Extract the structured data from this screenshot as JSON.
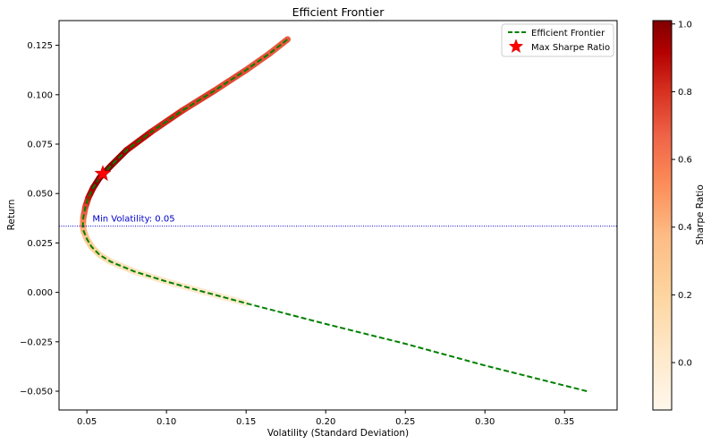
{
  "chart_data": {
    "type": "scatter",
    "title": "Efficient Frontier",
    "xlabel": "Volatility (Standard Deviation)",
    "ylabel": "Return",
    "xlim": [
      0.0325,
      0.383
    ],
    "ylim": [
      -0.0595,
      0.1375
    ],
    "xticks": [
      0.05,
      0.1,
      0.15,
      0.2,
      0.25,
      0.3,
      0.35
    ],
    "xtick_labels": [
      "0.05",
      "0.10",
      "0.15",
      "0.20",
      "0.25",
      "0.30",
      "0.35"
    ],
    "yticks": [
      -0.05,
      -0.025,
      0.0,
      0.025,
      0.05,
      0.075,
      0.1,
      0.125
    ],
    "ytick_labels": [
      "−0.050",
      "−0.025",
      "0.000",
      "0.025",
      "0.050",
      "0.075",
      "0.100",
      "0.125"
    ],
    "legend_position": "upper right",
    "legend": [
      {
        "label": "Efficient Frontier",
        "style": "dashed-line",
        "color": "#008000"
      },
      {
        "label": "Max Sharpe Ratio",
        "style": "star-marker",
        "color": "#ff0000"
      }
    ],
    "colormap": "OrRd",
    "colorbar": {
      "label": "Sharpe Ratio",
      "range": [
        -0.14,
        1.01
      ],
      "ticks": [
        0.0,
        0.2,
        0.4,
        0.6,
        0.8,
        1.0
      ],
      "tick_labels": [
        "0.0",
        "0.2",
        "0.4",
        "0.6",
        "0.8",
        "1.0"
      ]
    },
    "frontier_line": {
      "name": "Efficient Frontier",
      "color": "#008000",
      "points": [
        [
          0.364,
          -0.05
        ],
        [
          0.3,
          -0.037
        ],
        [
          0.25,
          -0.026
        ],
        [
          0.2,
          -0.016
        ],
        [
          0.15,
          -0.0055
        ],
        [
          0.12,
          0.001
        ],
        [
          0.1,
          0.0055
        ],
        [
          0.08,
          0.0105
        ],
        [
          0.065,
          0.0155
        ],
        [
          0.058,
          0.019
        ],
        [
          0.053,
          0.023
        ],
        [
          0.05,
          0.027
        ],
        [
          0.048,
          0.031
        ],
        [
          0.0475,
          0.034
        ],
        [
          0.0478,
          0.038
        ],
        [
          0.049,
          0.043
        ],
        [
          0.051,
          0.048
        ],
        [
          0.054,
          0.053
        ],
        [
          0.058,
          0.058
        ],
        [
          0.065,
          0.064
        ],
        [
          0.075,
          0.072
        ],
        [
          0.09,
          0.081
        ],
        [
          0.11,
          0.092
        ],
        [
          0.13,
          0.102
        ],
        [
          0.15,
          0.1125
        ],
        [
          0.165,
          0.121
        ],
        [
          0.176,
          0.128
        ]
      ]
    },
    "portfolio_scatter": {
      "note_value": "sharpe",
      "points": [
        {
          "x": 0.176,
          "y": 0.128,
          "sharpe": 0.7
        },
        {
          "x": 0.165,
          "y": 0.121,
          "sharpe": 0.7
        },
        {
          "x": 0.15,
          "y": 0.1125,
          "sharpe": 0.72
        },
        {
          "x": 0.13,
          "y": 0.102,
          "sharpe": 0.75
        },
        {
          "x": 0.11,
          "y": 0.092,
          "sharpe": 0.79
        },
        {
          "x": 0.09,
          "y": 0.081,
          "sharpe": 0.86
        },
        {
          "x": 0.075,
          "y": 0.072,
          "sharpe": 0.94
        },
        {
          "x": 0.065,
          "y": 0.064,
          "sharpe": 0.99
        },
        {
          "x": 0.058,
          "y": 0.058,
          "sharpe": 1.0
        },
        {
          "x": 0.054,
          "y": 0.053,
          "sharpe": 0.97
        },
        {
          "x": 0.051,
          "y": 0.048,
          "sharpe": 0.88
        },
        {
          "x": 0.049,
          "y": 0.043,
          "sharpe": 0.75
        },
        {
          "x": 0.0478,
          "y": 0.038,
          "sharpe": 0.62
        },
        {
          "x": 0.0475,
          "y": 0.034,
          "sharpe": 0.5
        },
        {
          "x": 0.048,
          "y": 0.031,
          "sharpe": 0.4
        },
        {
          "x": 0.05,
          "y": 0.027,
          "sharpe": 0.3
        },
        {
          "x": 0.053,
          "y": 0.023,
          "sharpe": 0.22
        },
        {
          "x": 0.058,
          "y": 0.019,
          "sharpe": 0.15
        },
        {
          "x": 0.065,
          "y": 0.0155,
          "sharpe": 0.1
        },
        {
          "x": 0.08,
          "y": 0.0105,
          "sharpe": 0.05
        },
        {
          "x": 0.1,
          "y": 0.0055,
          "sharpe": 0.02
        },
        {
          "x": 0.12,
          "y": 0.001,
          "sharpe": 0.0
        },
        {
          "x": 0.15,
          "y": -0.0055,
          "sharpe": -0.03
        }
      ]
    },
    "max_sharpe": {
      "label": "Max Sharpe Ratio",
      "x": 0.06,
      "y": 0.06,
      "color": "#ff0000"
    },
    "min_volatility_line": {
      "y": 0.0335,
      "color": "#0000cc",
      "style": "dotted"
    },
    "annotation": {
      "text": "Min Volatility: 0.05",
      "x": 0.0535,
      "y": 0.0345,
      "color": "#0000cc"
    }
  }
}
